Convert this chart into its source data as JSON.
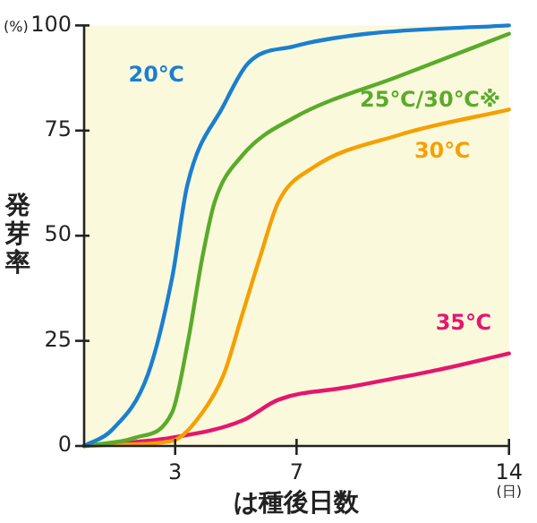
{
  "chart_data": {
    "type": "line",
    "xlabel": "は種後日数",
    "ylabel": "発芽率",
    "xlim": [
      0,
      14
    ],
    "xticks": [
      3,
      7,
      14
    ],
    "ylim": [
      0,
      100
    ],
    "yticks": [
      0,
      25,
      50,
      75,
      100
    ],
    "grid": false,
    "legend": false,
    "marker": "none",
    "line_style": "solid",
    "annotations": [
      "(%)",
      "(日)"
    ],
    "series": [
      {
        "name": "20℃",
        "color": "#1a7fd0",
        "x": [
          0,
          0.9,
          2.1,
          2.9,
          3.4,
          4.6,
          5.4,
          6.9,
          9.3,
          14
        ],
        "values": [
          0,
          3.7,
          17,
          40,
          62,
          81,
          91,
          95,
          98,
          100
        ]
      },
      {
        "name": "25℃/30℃※",
        "color": "#5aab2a",
        "x": [
          0,
          1.7,
          2.9,
          3.4,
          3.9,
          4.3,
          5.2,
          6.9,
          10.4,
          14
        ],
        "values": [
          0,
          2,
          8,
          24,
          45,
          58,
          69,
          78,
          88,
          98
        ]
      },
      {
        "name": "30℃",
        "color": "#f5a000",
        "x": [
          0,
          1.1,
          2.9,
          3.9,
          4.6,
          5.2,
          5.8,
          6.4,
          7.5,
          10.4,
          14
        ],
        "values": [
          0,
          0.3,
          1.2,
          8,
          17,
          31,
          45,
          58,
          66,
          74,
          80
        ]
      },
      {
        "name": "35℃",
        "color": "#e5166e",
        "x": [
          0,
          2.9,
          5.2,
          6.4,
          8.7,
          11.6,
          14
        ],
        "values": [
          0,
          2,
          6,
          11,
          14,
          18,
          22
        ]
      }
    ]
  }
}
